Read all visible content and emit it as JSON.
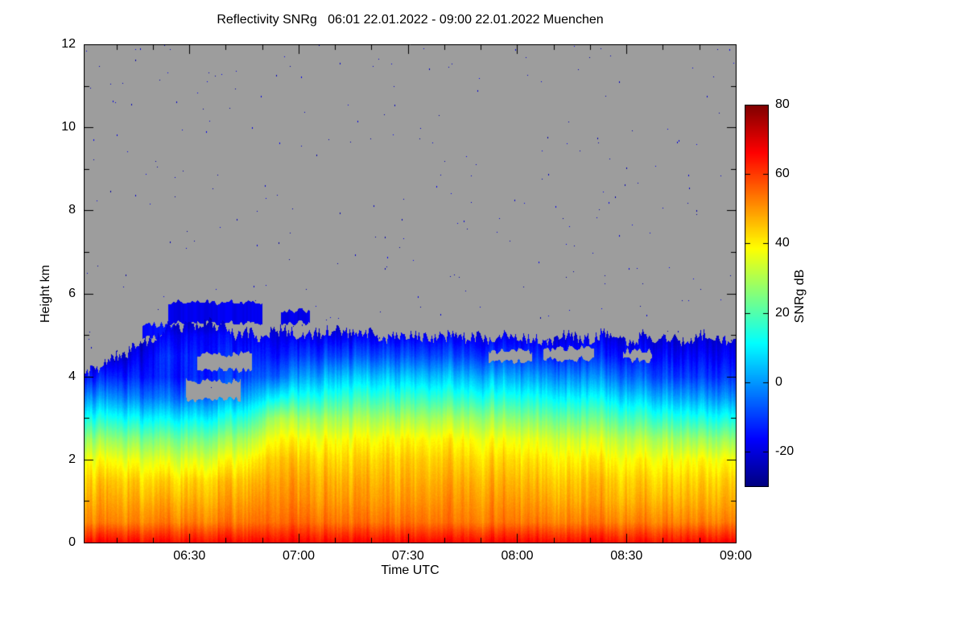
{
  "title": "Reflectivity SNRg   06:01 22.01.2022 - 09:00 22.01.2022 Muenchen",
  "axes": {
    "x": {
      "label": "Time UTC",
      "ticks": [
        "06:30",
        "07:00",
        "07:30",
        "08:00",
        "08:30",
        "09:00"
      ],
      "tick_minutes": [
        30,
        60,
        90,
        120,
        150,
        180
      ],
      "range_minutes_after_06_00": [
        1,
        180
      ]
    },
    "y": {
      "label": "Height km",
      "ticks": [
        0,
        2,
        4,
        6,
        8,
        10,
        12
      ],
      "range_km": [
        0,
        12
      ]
    }
  },
  "colorbar": {
    "label": "SNRg dB",
    "ticks": [
      80,
      60,
      40,
      20,
      0,
      -20
    ],
    "range_db": [
      -30,
      80
    ],
    "colormap": "jet"
  },
  "chart_data": {
    "type": "heatmap",
    "title": "Reflectivity SNRg 06:01 22.01.2022 - 09:00 22.01.2022 Muenchen",
    "location": "Muenchen",
    "date": "22.01.2022",
    "time_start_utc": "06:01",
    "time_end_utc": "09:00",
    "xlabel": "Time UTC",
    "ylabel": "Height km",
    "zlabel": "SNRg dB",
    "y_range_km": [
      0,
      12
    ],
    "z_range_db": [
      -30,
      80
    ],
    "no_data_color": "#9d9d9d",
    "colormap": "jet",
    "x_minutes_after_06_00": [
      1,
      12,
      24,
      36,
      48,
      54,
      60,
      72,
      90,
      108,
      126,
      144,
      160,
      172,
      180
    ],
    "height_levels_km": [
      0,
      0.5,
      1,
      1.5,
      2,
      2.5,
      3,
      3.5,
      4,
      4.5,
      5,
      5.5,
      6
    ],
    "echo_top_km": [
      4.1,
      4.6,
      5.15,
      5.2,
      5.05,
      5.0,
      5.0,
      5.0,
      4.95,
      4.95,
      4.9,
      4.95,
      4.9,
      4.95,
      4.9
    ],
    "snr_db_profiles": [
      [
        66,
        52,
        48,
        44,
        38,
        28,
        14,
        0,
        -14,
        null,
        null,
        null,
        null
      ],
      [
        66,
        52,
        48,
        44,
        37,
        26,
        12,
        -2,
        -13,
        -21,
        null,
        null,
        null
      ],
      [
        66,
        53,
        48,
        43,
        35,
        24,
        10,
        -4,
        -13,
        -12,
        -17,
        null,
        null
      ],
      [
        66,
        53,
        48,
        44,
        36,
        25,
        11,
        -3,
        -12,
        -13,
        -16,
        null,
        null
      ],
      [
        66,
        54,
        50,
        46,
        40,
        31,
        18,
        4,
        -8,
        -13,
        -18,
        null,
        null
      ],
      [
        66,
        55,
        52,
        49,
        46,
        40,
        31,
        12,
        -5,
        -14,
        -19,
        null,
        null
      ],
      [
        66,
        55,
        51,
        48,
        44,
        38,
        28,
        13,
        0,
        -11,
        -19,
        null,
        null
      ],
      [
        66,
        54,
        50,
        47,
        43,
        38,
        29,
        17,
        5,
        -8,
        -18,
        null,
        null
      ],
      [
        66,
        54,
        50,
        47,
        44,
        39,
        29,
        17,
        5,
        -8,
        -18,
        null,
        null
      ],
      [
        66,
        53,
        50,
        47,
        43,
        38,
        28,
        15,
        3,
        -10,
        -19,
        null,
        null
      ],
      [
        66,
        53,
        49,
        45,
        41,
        35,
        24,
        12,
        0,
        -12,
        -20,
        null,
        null
      ],
      [
        66,
        53,
        48,
        45,
        40,
        33,
        22,
        10,
        -2,
        -13,
        -20,
        null,
        null
      ],
      [
        66,
        53,
        48,
        44,
        39,
        30,
        17,
        4,
        -8,
        -15,
        -21,
        null,
        null
      ],
      [
        66,
        52,
        47,
        43,
        38,
        27,
        13,
        0,
        -11,
        -17,
        -22,
        null,
        null
      ],
      [
        66,
        52,
        47,
        43,
        37,
        26,
        12,
        -2,
        -12,
        -18,
        -22,
        null,
        null
      ]
    ],
    "upper_cloud_patches": [
      [
        17,
        27,
        4.95,
        5.25,
        -15
      ],
      [
        24,
        50,
        5.3,
        5.8,
        -18
      ],
      [
        55,
        63,
        5.3,
        5.6,
        -19
      ]
    ],
    "clear_gaps": [
      [
        32,
        47,
        4.15,
        4.55
      ],
      [
        29,
        44,
        3.45,
        3.9
      ],
      [
        112,
        124,
        4.35,
        4.62
      ],
      [
        127,
        141,
        4.42,
        4.68
      ],
      [
        149,
        157,
        4.4,
        4.62
      ]
    ],
    "noise_speckles": {
      "count": 240,
      "seed": 20220122,
      "value_db": -22
    }
  }
}
